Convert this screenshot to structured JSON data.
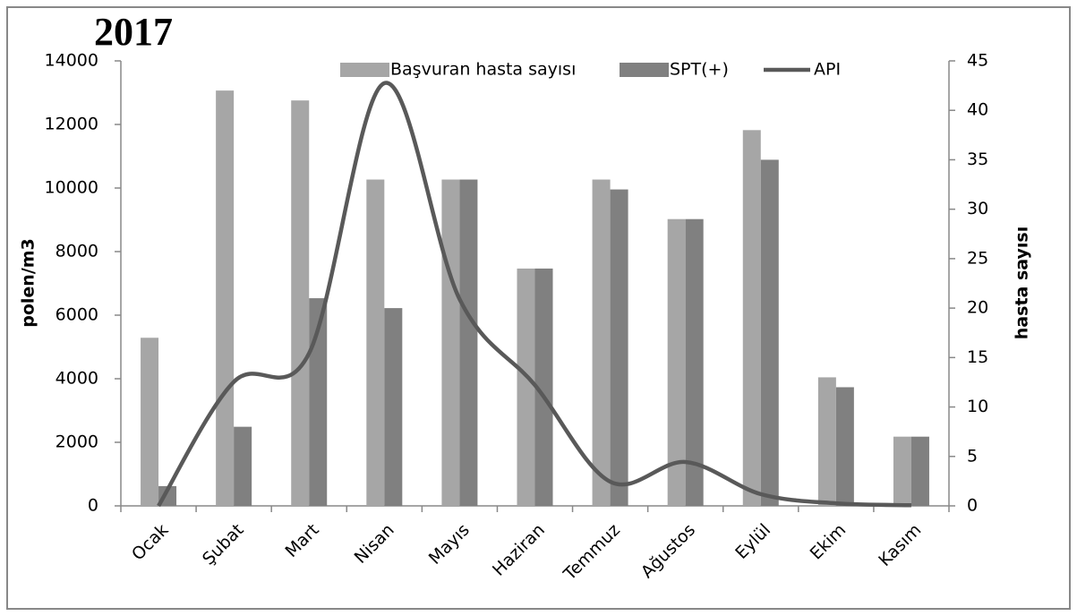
{
  "chart_data": {
    "type": "bar",
    "title": "2017",
    "y_label": "polen/m3",
    "y2_label": "hasta sayısı",
    "categories": [
      "Ocak",
      "Şubat",
      "Mart",
      "Nisan",
      "Mayıs",
      "Haziran",
      "Temmuz",
      "Ağustos",
      "Eylül",
      "Ekim",
      "Kasım"
    ],
    "series": [
      {
        "name": "Başvuran hasta sayısı",
        "type": "bar",
        "axis": "y2",
        "color": "#a6a6a6",
        "values": [
          17,
          42,
          41,
          33,
          33,
          24,
          33,
          29,
          38,
          13,
          7
        ]
      },
      {
        "name": "SPT(+)",
        "type": "bar",
        "axis": "y2",
        "color": "#808080",
        "values": [
          2,
          8,
          21,
          20,
          33,
          24,
          32,
          29,
          35,
          12,
          7
        ]
      },
      {
        "name": "API",
        "type": "line",
        "color": "#595959",
        "values": [
          0,
          3900,
          4800,
          13300,
          6500,
          3800,
          760,
          1380,
          370,
          80,
          20
        ]
      }
    ],
    "ylim": [
      0,
      14000
    ],
    "yticks": [
      0,
      2000,
      4000,
      6000,
      8000,
      10000,
      12000,
      14000
    ],
    "y2lim": [
      0,
      45
    ],
    "y2ticks": [
      0,
      5,
      10,
      15,
      20,
      25,
      30,
      35,
      40,
      45
    ],
    "legend": "top"
  }
}
